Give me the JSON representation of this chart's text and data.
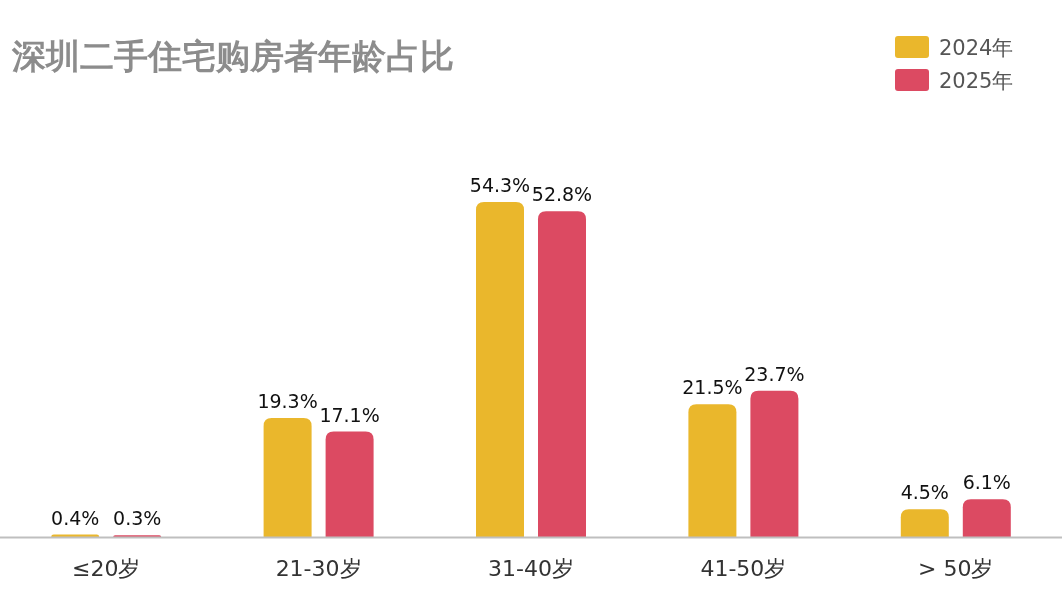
{
  "chart_data": {
    "type": "bar",
    "title": "深圳二手住宅购房者年龄占比",
    "categories": [
      "≤20岁",
      "21-30岁",
      "31-40岁",
      "41-50岁",
      "> 50岁"
    ],
    "series": [
      {
        "name": "2024年",
        "color": "#eab72c",
        "values": [
          0.4,
          19.3,
          54.3,
          21.5,
          4.5
        ],
        "value_labels": [
          "0.4%",
          "19.3%",
          "54.3%",
          "21.5%",
          "4.5%"
        ]
      },
      {
        "name": "2025年",
        "color": "#dc4a62",
        "values": [
          0.3,
          17.1,
          52.8,
          23.7,
          6.1
        ],
        "value_labels": [
          "0.3%",
          "17.1%",
          "52.8%",
          "23.7%",
          "6.1%"
        ]
      }
    ],
    "legend": "top right"
  }
}
